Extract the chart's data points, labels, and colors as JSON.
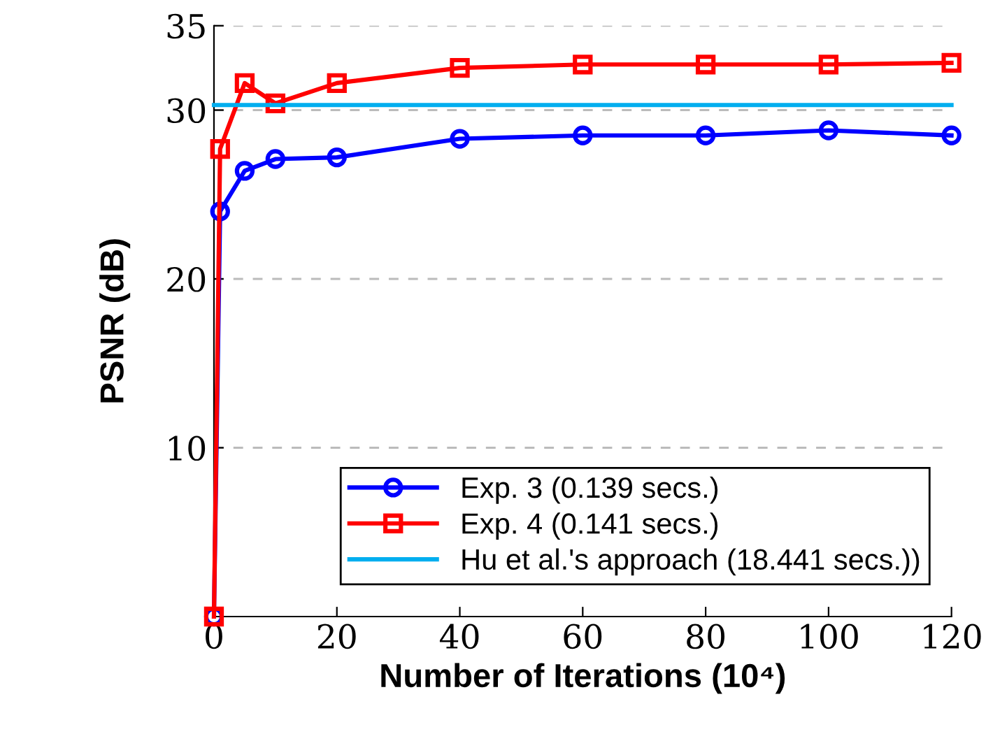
{
  "chart_data": {
    "type": "line",
    "xlabel": "Number of Iterations (10⁴)",
    "ylabel": "PSNR (dB)",
    "x": [
      0,
      1,
      5,
      10,
      20,
      40,
      60,
      80,
      100,
      120
    ],
    "series": [
      {
        "name": "Exp. 3 (0.139 secs.)",
        "color": "#0000ff",
        "marker": "circle",
        "values": [
          0,
          24.0,
          26.4,
          27.1,
          27.2,
          28.3,
          28.5,
          28.5,
          28.8,
          28.5
        ]
      },
      {
        "name": "Exp. 4 (0.141 secs.)",
        "color": "#ff0000",
        "marker": "square",
        "values": [
          0,
          27.7,
          31.6,
          30.4,
          31.6,
          32.5,
          32.7,
          32.7,
          32.7,
          32.8
        ]
      },
      {
        "name": "Hu et al.'s approach (18.441 secs.))",
        "color": "#00aeef",
        "marker": "none",
        "x": [
          0,
          120
        ],
        "values": [
          30.3,
          30.3
        ]
      }
    ],
    "xlim": [
      0,
      120
    ],
    "xticks": [
      0,
      20,
      40,
      60,
      80,
      100,
      120
    ],
    "ylim": [
      0,
      35
    ],
    "yticks": [
      10,
      20,
      30,
      35
    ],
    "grid": "y",
    "legend": "bottom right",
    "line_style": "solid"
  }
}
